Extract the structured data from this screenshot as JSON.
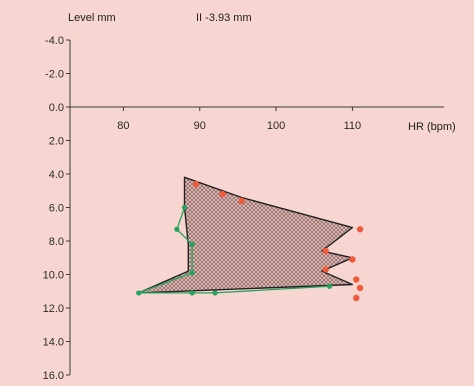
{
  "chart_data": {
    "type": "line",
    "title": "",
    "xlabel": "HR (bpm)",
    "ylabel": "Level mm",
    "annotation": "II  -3.93 mm",
    "xlim": [
      73,
      122
    ],
    "ylim": [
      16,
      -4
    ],
    "x_ticks": [
      80,
      90,
      100,
      110
    ],
    "x_tick_labels": [
      "80",
      "90",
      "100",
      "110"
    ],
    "y_ticks": [
      -4,
      -2,
      0,
      2,
      4,
      6,
      8,
      10,
      12,
      14,
      16
    ],
    "y_tick_labels": [
      "-4.0",
      "-2.0",
      "0.0",
      "2.0",
      "4.0",
      "6.0",
      "8.0",
      "10.0",
      "12.0",
      "14.0",
      "16.0"
    ],
    "grid": false,
    "colors": {
      "background": "#f7d6d1",
      "area_fill": "#e9b7b2",
      "outline": "#222222",
      "left_points": "#26a35a",
      "right_points": "#ee5a3b",
      "axis": "#3a3a3a"
    },
    "series": [
      {
        "role": "loop-outline",
        "points": [
          {
            "x": 88.0,
            "y": 4.2
          },
          {
            "x": 95.5,
            "y": 5.4
          },
          {
            "x": 110.0,
            "y": 7.2
          },
          {
            "x": 106.0,
            "y": 8.6
          },
          {
            "x": 110.0,
            "y": 9.0
          },
          {
            "x": 106.0,
            "y": 9.8
          },
          {
            "x": 110.0,
            "y": 10.6
          },
          {
            "x": 82.0,
            "y": 11.1
          },
          {
            "x": 88.5,
            "y": 9.8
          },
          {
            "x": 88.5,
            "y": 8.2
          },
          {
            "x": 88.0,
            "y": 6.0
          }
        ]
      },
      {
        "role": "left-points",
        "points": [
          {
            "x": 88.0,
            "y": 6.0
          },
          {
            "x": 87.0,
            "y": 7.3
          },
          {
            "x": 89.0,
            "y": 8.2
          },
          {
            "x": 89.0,
            "y": 9.9
          },
          {
            "x": 82.0,
            "y": 11.1
          },
          {
            "x": 89.0,
            "y": 11.1
          },
          {
            "x": 92.0,
            "y": 11.1
          },
          {
            "x": 107.0,
            "y": 10.7
          }
        ]
      },
      {
        "role": "right-points",
        "points": [
          {
            "x": 89.5,
            "y": 4.6
          },
          {
            "x": 93.0,
            "y": 5.2
          },
          {
            "x": 95.5,
            "y": 5.6
          },
          {
            "x": 111.0,
            "y": 7.3
          },
          {
            "x": 106.5,
            "y": 8.6
          },
          {
            "x": 110.0,
            "y": 9.1
          },
          {
            "x": 106.5,
            "y": 9.7
          },
          {
            "x": 110.5,
            "y": 10.3
          },
          {
            "x": 111.0,
            "y": 10.8
          },
          {
            "x": 110.5,
            "y": 11.4
          }
        ]
      }
    ]
  }
}
